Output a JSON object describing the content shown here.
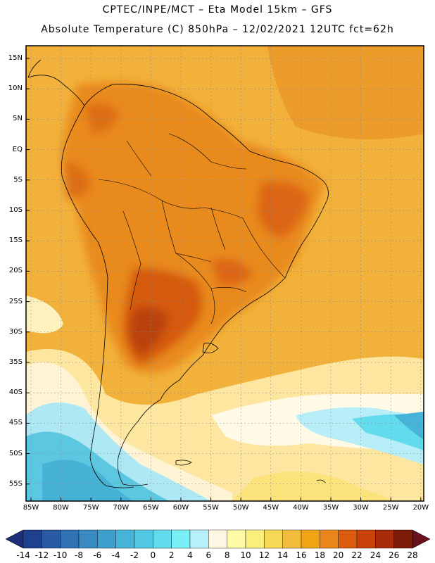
{
  "header": {
    "line1": "CPTEC/INPE/MCT –  Eta Model 15km – GFS",
    "line2": "Absolute Temperature (C) 850hPa – 12/02/2021 12UTC fct=62h"
  },
  "map": {
    "lat_ticks": [
      "15N",
      "10N",
      "5N",
      "EQ",
      "5S",
      "10S",
      "15S",
      "20S",
      "25S",
      "30S",
      "35S",
      "40S",
      "45S",
      "50S",
      "55S"
    ],
    "lon_ticks": [
      "85W",
      "80W",
      "75W",
      "70W",
      "65W",
      "60W",
      "55W",
      "50W",
      "45W",
      "40W",
      "35W",
      "30W",
      "25W",
      "20W"
    ]
  },
  "colorbar": {
    "labels": [
      "-14",
      "-12",
      "-10",
      "-8",
      "-6",
      "-4",
      "-2",
      "0",
      "2",
      "4",
      "6",
      "8",
      "10",
      "12",
      "14",
      "16",
      "18",
      "20",
      "22",
      "24",
      "26",
      "28"
    ],
    "colors": [
      "#1f3f8f",
      "#2a5aa3",
      "#3272b3",
      "#3a89c2",
      "#3f9fcc",
      "#46b4d8",
      "#52c8e3",
      "#62dced",
      "#7af0f6",
      "#b8f0fb",
      "#fff6e4",
      "#fffaa6",
      "#fbee7c",
      "#f7d857",
      "#f2bd3a",
      "#efa514",
      "#e8861c",
      "#dd5b0e",
      "#c9420a",
      "#a72c0a",
      "#7d1c09"
    ],
    "low_arrow": "#1e2f7a",
    "high_arrow": "#6a0f1c"
  }
}
